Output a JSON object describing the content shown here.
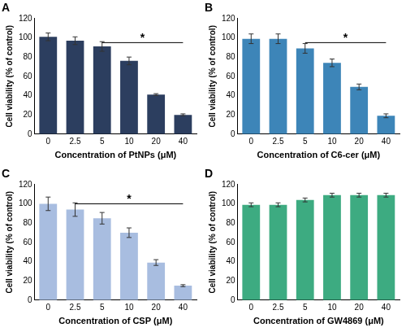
{
  "chart_data": [
    {
      "type": "bar",
      "title": "A",
      "x_label": "Concentration of PtNPs (μM)",
      "y_label": "Cell viability (% of control)",
      "categories": [
        "0",
        "2.5",
        "5",
        "10",
        "20",
        "40"
      ],
      "values": [
        101,
        97,
        91,
        76,
        41,
        20
      ],
      "errors": [
        4,
        4,
        5,
        4,
        1,
        1
      ],
      "color": "#2c3e5f",
      "ylim": [
        0,
        120
      ],
      "yticks": [
        0,
        20,
        40,
        60,
        80,
        100,
        120
      ],
      "grid": false,
      "annotations": [
        {
          "from": "5",
          "to": "40",
          "y": 95,
          "text": "*"
        }
      ]
    },
    {
      "type": "bar",
      "title": "B",
      "x_label": "Concentration of C6-cer (μM)",
      "y_label": "Cell viability (% of control)",
      "categories": [
        "0",
        "2.5",
        "5",
        "10",
        "20",
        "40"
      ],
      "values": [
        99,
        99,
        89,
        74,
        49,
        19
      ],
      "errors": [
        5,
        5,
        5,
        4,
        3,
        2
      ],
      "color": "#3d85b8",
      "ylim": [
        0,
        120
      ],
      "yticks": [
        0,
        20,
        40,
        60,
        80,
        100,
        120
      ],
      "grid": false,
      "annotations": [
        {
          "from": "5",
          "to": "40",
          "y": 95,
          "text": "*"
        }
      ]
    },
    {
      "type": "bar",
      "title": "C",
      "x_label": "Concentration of CSP (μM)",
      "y_label": "Cell viability (% of control)",
      "categories": [
        "0",
        "2.5",
        "5",
        "10",
        "20",
        "40"
      ],
      "values": [
        100,
        94,
        85,
        70,
        39,
        15
      ],
      "errors": [
        7,
        7,
        6,
        5,
        3,
        1
      ],
      "color": "#a8bde0",
      "ylim": [
        0,
        120
      ],
      "yticks": [
        0,
        20,
        40,
        60,
        80,
        100,
        120
      ],
      "grid": false,
      "annotations": [
        {
          "from": "2.5",
          "to": "40",
          "y": 100,
          "text": "*"
        }
      ]
    },
    {
      "type": "bar",
      "title": "D",
      "x_label": "Concentration of GW4869 (μM)",
      "y_label": "Cell viability (% of control)",
      "categories": [
        "0",
        "2.5",
        "5",
        "10",
        "20",
        "40"
      ],
      "values": [
        99,
        99,
        104,
        109,
        109,
        109
      ],
      "errors": [
        2,
        2,
        2,
        2,
        2,
        2
      ],
      "color": "#3dab81",
      "ylim": [
        0,
        120
      ],
      "yticks": [
        0,
        20,
        40,
        60,
        80,
        100,
        120
      ],
      "grid": false
    }
  ]
}
